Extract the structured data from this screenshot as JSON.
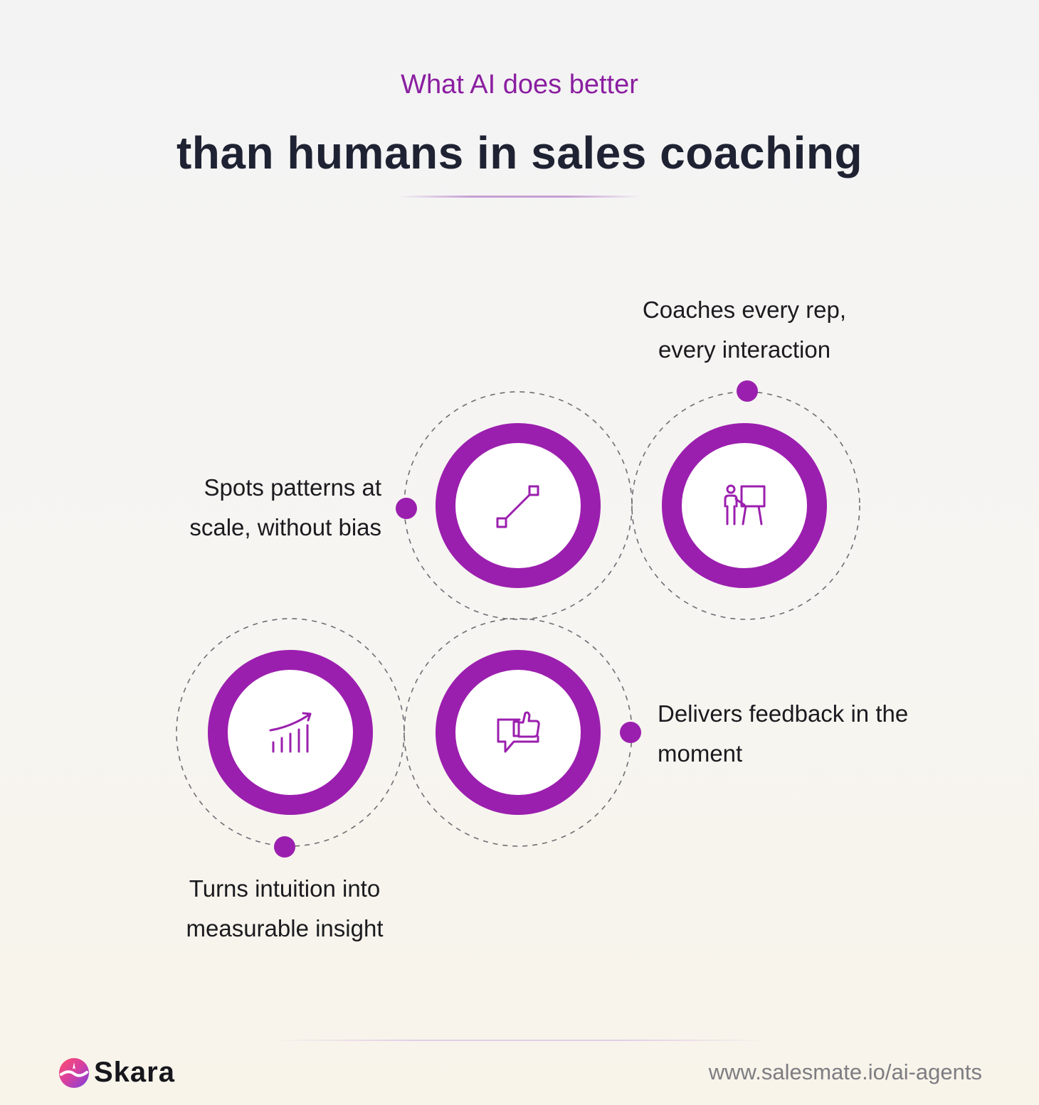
{
  "header": {
    "subtitle": "What AI does better",
    "title": "than humans in sales coaching"
  },
  "items": [
    {
      "text_line1": "Spots patterns at",
      "text_line2": "scale, without bias",
      "icon": "line-segment-icon"
    },
    {
      "text_line1": "Coaches every rep,",
      "text_line2": "every interaction",
      "icon": "presenter-board-icon"
    },
    {
      "text_line1": "Turns intuition into",
      "text_line2": "measurable insight",
      "icon": "growth-bar-chart-icon"
    },
    {
      "text_line1": "Delivers feedback in the",
      "text_line2": "moment",
      "icon": "thumbs-up-chat-icon"
    }
  ],
  "footer": {
    "brand": "Skara",
    "url": "www.salesmate.io/ai-agents"
  },
  "colors": {
    "accent": "#9b1fae",
    "title": "#1e2232",
    "subtitle": "#8a1fa0",
    "dashed": "#6e6e74"
  }
}
